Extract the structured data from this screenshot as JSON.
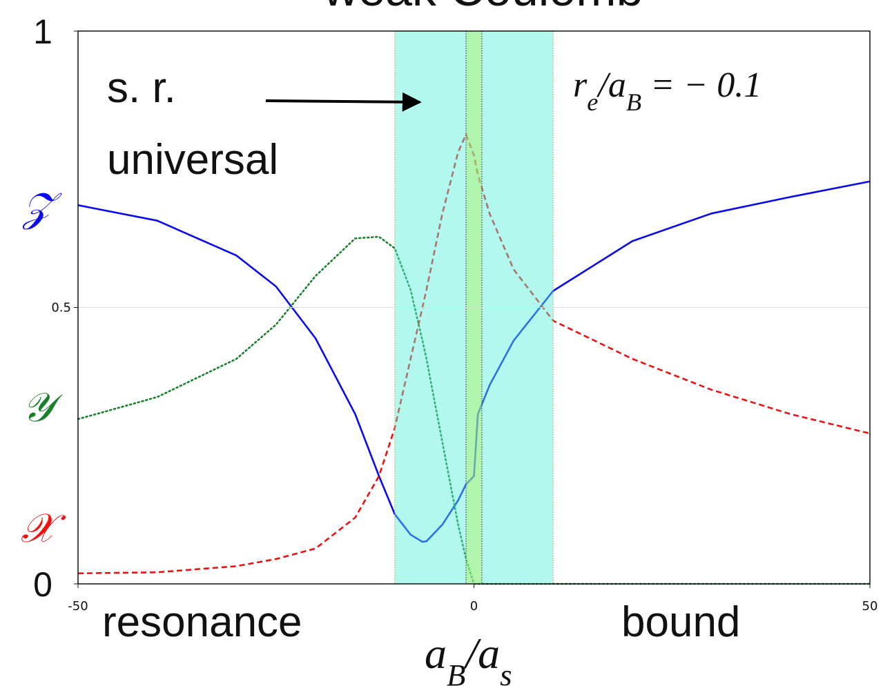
{
  "chart_data": {
    "type": "line",
    "title": "weak Coulomb",
    "x": [
      -50,
      -40,
      -30,
      -25,
      -20,
      -15,
      -12,
      -10,
      -8,
      -6.5,
      -6,
      -4,
      -2,
      -1,
      0,
      0.5,
      2,
      5,
      10,
      20,
      30,
      40,
      50
    ],
    "series": [
      {
        "name": "𝒵",
        "color": "#0a0aee",
        "style": "solid",
        "values": [
          0.685,
          0.657,
          0.594,
          0.538,
          0.444,
          0.307,
          0.195,
          0.126,
          0.089,
          0.076,
          0.077,
          0.107,
          0.151,
          0.18,
          0.195,
          0.307,
          0.36,
          0.44,
          0.53,
          0.62,
          0.67,
          0.7,
          0.728
        ]
      },
      {
        "name": "𝒴",
        "color": "#1a7f2a",
        "style": "dotted",
        "values": [
          0.298,
          0.338,
          0.407,
          0.469,
          0.557,
          0.625,
          0.628,
          0.607,
          0.532,
          0.44,
          0.407,
          0.257,
          0.107,
          0.045,
          0,
          0,
          0,
          0,
          0,
          0,
          0,
          0,
          0
        ]
      },
      {
        "name": "𝒳",
        "color": "#ee1111",
        "style": "dashed",
        "values": [
          0.019,
          0.021,
          0.032,
          0.045,
          0.064,
          0.12,
          0.195,
          0.282,
          0.407,
          0.5,
          0.532,
          0.669,
          0.781,
          0.813,
          0.775,
          0.74,
          0.669,
          0.569,
          0.476,
          0.407,
          0.351,
          0.307,
          0.272
        ]
      }
    ],
    "bands": [
      {
        "from": -10,
        "to": 10,
        "color": "#55efd9",
        "edge_color": "#f0a030"
      },
      {
        "from": -1,
        "to": 1,
        "color": "#b0f060",
        "edge_color": "#444444"
      }
    ],
    "xlim": [
      -50,
      50
    ],
    "xticks": [
      -50,
      0,
      50
    ],
    "ylim": [
      0,
      1
    ],
    "yticks": [
      0,
      0.5,
      1
    ],
    "grid": true,
    "annotations": {
      "short_range": "s. r.",
      "universal": "universal",
      "ratio": [
        {
          "text": "r"
        },
        {
          "text": "e",
          "sub": true
        },
        {
          "text": "/a"
        },
        {
          "text": "B",
          "sub": true
        },
        {
          "text": " = − 0.1"
        }
      ],
      "resonance": "resonance",
      "bound": "bound"
    },
    "x_label": [
      {
        "text": "a"
      },
      {
        "text": "B",
        "sub": true
      },
      {
        "text": "/a"
      },
      {
        "text": "s",
        "sub": true
      }
    ]
  }
}
